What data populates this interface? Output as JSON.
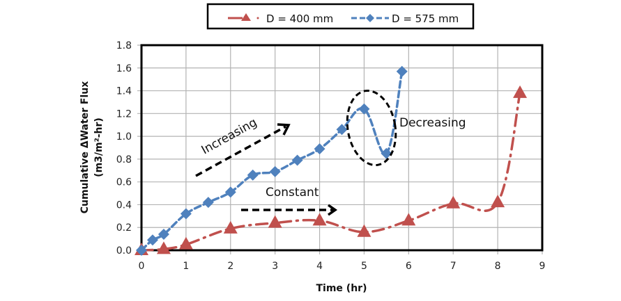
{
  "chart_data": {
    "type": "line",
    "title": "",
    "xlabel": "Time (hr)",
    "ylabel_line1": "Cumulative ΔWater  Flux",
    "ylabel_line2": "(m3/m²-hr)",
    "xlim": [
      0,
      9
    ],
    "ylim": [
      0,
      1.8
    ],
    "xticks": [
      "0",
      "1",
      "2",
      "3",
      "4",
      "5",
      "6",
      "7",
      "8",
      "9"
    ],
    "yticks": [
      "0.0",
      "0.2",
      "0.4",
      "0.6",
      "0.8",
      "1.0",
      "1.2",
      "1.4",
      "1.6",
      "1.8"
    ],
    "grid": true,
    "legend_position": "top-center",
    "series": [
      {
        "name": "D = 400 mm",
        "color": "#c0504d",
        "marker": "triangle",
        "line_style": "dash-dot",
        "x": [
          0,
          0.5,
          1,
          2,
          3,
          4,
          5,
          6,
          7,
          8,
          8.5
        ],
        "y": [
          0.0,
          0.01,
          0.05,
          0.19,
          0.24,
          0.26,
          0.16,
          0.26,
          0.41,
          0.42,
          1.38
        ]
      },
      {
        "name": "D = 575 mm",
        "color": "#4f81bd",
        "marker": "diamond",
        "line_style": "dashed",
        "x": [
          0,
          0.25,
          0.5,
          1,
          1.5,
          2,
          2.5,
          3,
          3.5,
          4,
          4.5,
          5,
          5.5,
          5.85
        ],
        "y": [
          0.0,
          0.09,
          0.14,
          0.32,
          0.42,
          0.51,
          0.66,
          0.69,
          0.79,
          0.89,
          1.06,
          1.24,
          0.85,
          1.57
        ]
      }
    ],
    "annotations": {
      "increasing": "Increasing",
      "constant": "Constant",
      "decreasing": "Decreasing"
    }
  }
}
